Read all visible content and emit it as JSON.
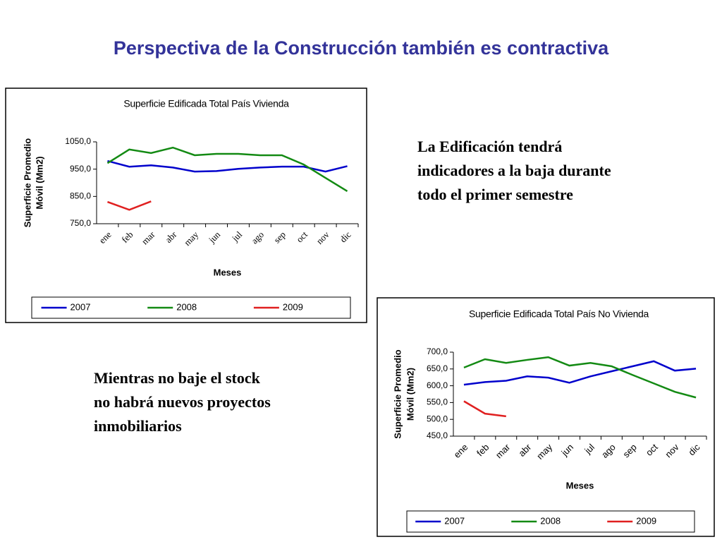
{
  "title": "Perspectiva de la Construcción también es contractiva",
  "notes": [
    {
      "lines": [
        "La Edificación tendrá",
        "indicadores a la baja durante",
        "todo el primer semestre"
      ]
    },
    {
      "lines": [
        "Mientras no baje el stock",
        "no habrá nuevos proyectos",
        "inmobiliarios"
      ]
    }
  ],
  "chart_data": [
    {
      "type": "line",
      "title": "Superficie Edificada Total País Vivienda",
      "xlabel": "Meses",
      "ylabel": [
        "Superficie Promedio",
        "Móvil (Mm2)"
      ],
      "categories": [
        "ene",
        "feb",
        "mar",
        "abr",
        "may",
        "jun",
        "jul",
        "ago",
        "sep",
        "oct",
        "nov",
        "dic"
      ],
      "ylim": [
        750,
        1050
      ],
      "yticks": [
        {
          "value": 750,
          "label": "750,0"
        },
        {
          "value": 850,
          "label": "850,0"
        },
        {
          "value": 950,
          "label": "950,0"
        },
        {
          "value": 1050,
          "label": "1050,0"
        }
      ],
      "legend": "bottom",
      "series": [
        {
          "name": "2007",
          "color": "#0000cc",
          "values": [
            980,
            959,
            964,
            956,
            941,
            943,
            951,
            956,
            959,
            959,
            941,
            961
          ]
        },
        {
          "name": "2008",
          "color": "#138a13",
          "values": [
            972,
            1022,
            1009,
            1029,
            1001,
            1006,
            1006,
            1001,
            1001,
            967,
            918,
            869
          ]
        },
        {
          "name": "2009",
          "color": "#e02020",
          "values": [
            830,
            801,
            832,
            null,
            null,
            null,
            null,
            null,
            null,
            null,
            null,
            null
          ]
        }
      ]
    },
    {
      "type": "line",
      "title": "Superficie Edificada Total País No Vivienda",
      "xlabel": "Meses",
      "ylabel": [
        "Superficie Promedio",
        "Móvil (Mm2)"
      ],
      "categories": [
        "ene",
        "feb",
        "mar",
        "abr",
        "may",
        "jun",
        "jul",
        "ago",
        "sep",
        "oct",
        "nov",
        "dic"
      ],
      "ylim": [
        450,
        700
      ],
      "yticks": [
        {
          "value": 450,
          "label": "450,0"
        },
        {
          "value": 500,
          "label": "500,0"
        },
        {
          "value": 550,
          "label": "550,0"
        },
        {
          "value": 600,
          "label": "600,0"
        },
        {
          "value": 650,
          "label": "650,0"
        },
        {
          "value": 700,
          "label": "700,0"
        }
      ],
      "legend": "bottom",
      "series": [
        {
          "name": "2007",
          "color": "#0000cc",
          "values": [
            603,
            611,
            615,
            628,
            624,
            609,
            628,
            643,
            658,
            673,
            645,
            651
          ]
        },
        {
          "name": "2008",
          "color": "#138a13",
          "values": [
            654,
            679,
            668,
            677,
            685,
            660,
            668,
            658,
            632,
            607,
            582,
            565
          ]
        },
        {
          "name": "2009",
          "color": "#e02020",
          "values": [
            554,
            517,
            509,
            null,
            null,
            null,
            null,
            null,
            null,
            null,
            null,
            null
          ]
        }
      ]
    }
  ]
}
